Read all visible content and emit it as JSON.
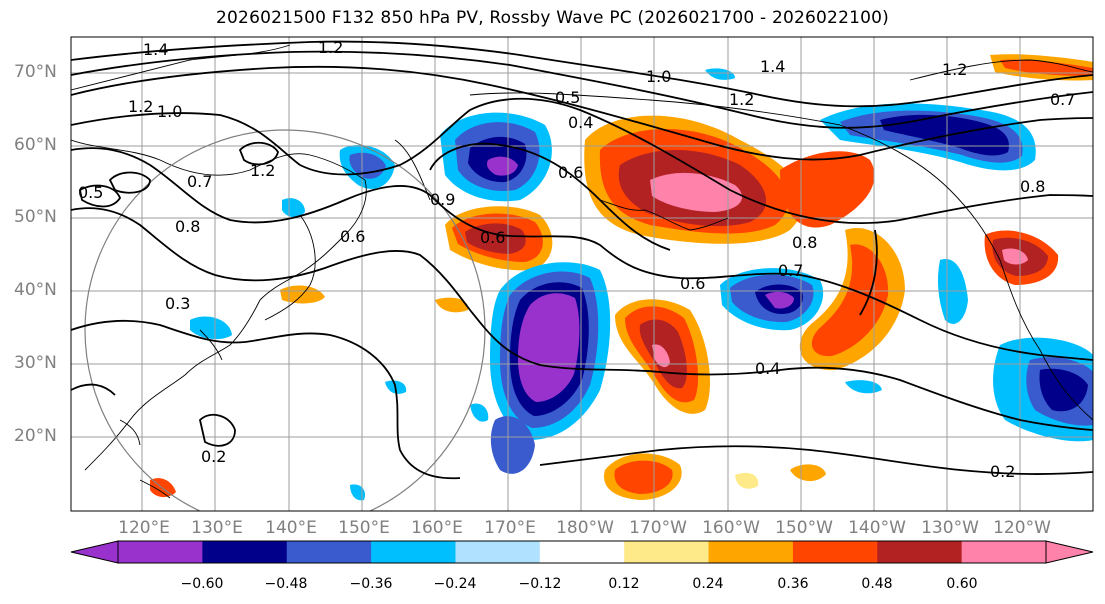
{
  "title": "2026021500 F132 850 hPa PV, Rossby Wave PC (2026021700 - 2026022100)",
  "latitude_labels": [
    "70°N",
    "60°N",
    "50°N",
    "40°N",
    "30°N",
    "20°N"
  ],
  "longitude_labels": [
    "120°E",
    "130°E",
    "140°E",
    "150°E",
    "160°E",
    "170°E",
    "180°W",
    "170°W",
    "160°W",
    "150°W",
    "140°W",
    "130°W",
    "120°W"
  ],
  "contour_labels": [
    "1.4",
    "1.2",
    "1.2",
    "1.0",
    "1.2",
    "0.5",
    "0.7",
    "0.8",
    "0.9",
    "0.4",
    "0.5",
    "0.6",
    "1.0",
    "1.4",
    "1.2",
    "0.6",
    "0.8",
    "0.7",
    "0.6",
    "0.4",
    "0.2",
    "0.2",
    "0.3",
    "0.8",
    "0.6",
    "0.7",
    "1.2"
  ],
  "colorbar": {
    "colors": [
      "#9932cc",
      "#00008b",
      "#3a5bcd",
      "#00bfff",
      "#b0e2ff",
      "#ffffff",
      "#ffea8a",
      "#ffa500",
      "#ff4500",
      "#b22222",
      "#ff82ab"
    ],
    "ticks": [
      "−0.60",
      "−0.48",
      "−0.36",
      "−0.24",
      "−0.12",
      "0.12",
      "0.24",
      "0.36",
      "0.48",
      "0.60"
    ]
  }
}
